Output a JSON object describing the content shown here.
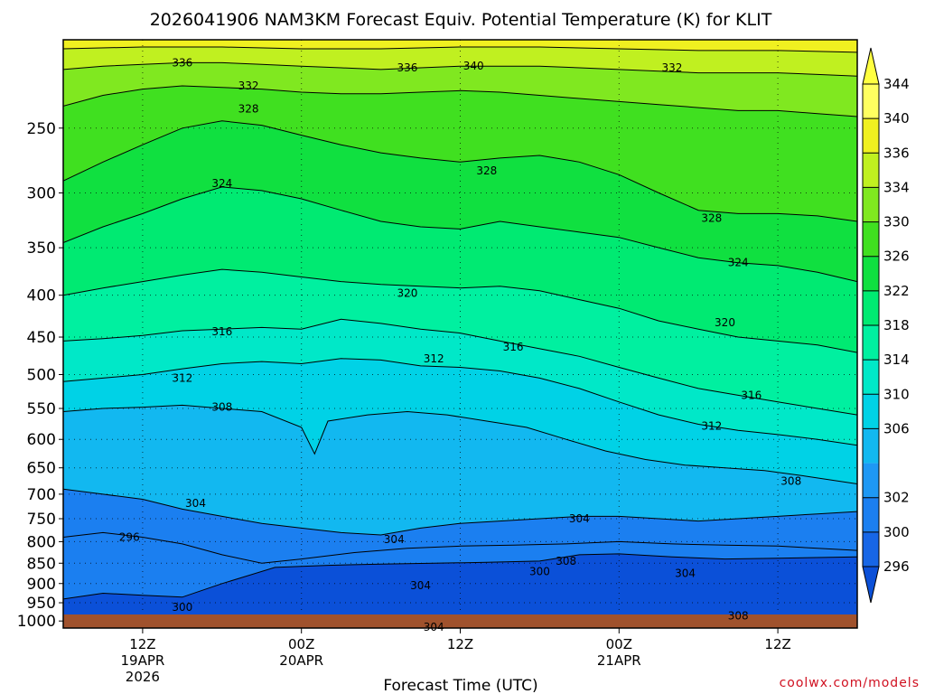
{
  "chart_data": {
    "type": "heatmap",
    "title": "2026041906 NAM3KM Forecast Equiv. Potential Temperature (K) for KLIT",
    "xlabel": "Forecast Time (UTC)",
    "ylabel": "",
    "credit": "coolwx.com/models",
    "y_axis": {
      "scale": "log-pressure",
      "range_hPa": [
        1020,
        195
      ],
      "ticks": [
        250,
        300,
        350,
        400,
        450,
        500,
        550,
        600,
        650,
        700,
        750,
        800,
        850,
        900,
        950,
        1000
      ]
    },
    "x_axis": {
      "range_hours": [
        -6,
        54
      ],
      "ticks": [
        {
          "hour": 0,
          "lines": [
            "12Z",
            "19APR",
            "2026"
          ]
        },
        {
          "hour": 12,
          "lines": [
            "00Z",
            "20APR"
          ]
        },
        {
          "hour": 24,
          "lines": [
            "12Z"
          ]
        },
        {
          "hour": 36,
          "lines": [
            "00Z",
            "21APR"
          ]
        },
        {
          "hour": 48,
          "lines": [
            "12Z"
          ]
        }
      ]
    },
    "colorbar": {
      "units": "K",
      "levels": [
        296,
        300,
        302,
        304,
        306,
        310,
        314,
        318,
        322,
        326,
        330,
        334,
        336,
        340,
        344
      ],
      "labels": [
        "296",
        "300",
        "302",
        "306",
        "310",
        "314",
        "318",
        "322",
        "326",
        "330",
        "334",
        "336",
        "340",
        "344"
      ]
    },
    "contour_interval_K": 4,
    "contours": [
      {
        "value": 296,
        "points": [
          [
            -6,
            790
          ],
          [
            -3,
            780
          ],
          [
            0,
            790
          ],
          [
            3,
            805
          ],
          [
            6,
            830
          ],
          [
            9,
            850
          ],
          [
            12,
            840
          ],
          [
            16,
            825
          ],
          [
            20,
            815
          ],
          [
            24,
            810
          ],
          [
            28,
            808
          ],
          [
            32,
            805
          ],
          [
            36,
            800
          ],
          [
            40,
            805
          ],
          [
            44,
            808
          ],
          [
            48,
            810
          ],
          [
            51,
            815
          ],
          [
            54,
            820
          ]
        ]
      },
      {
        "value": 300,
        "points": [
          [
            -6,
            940
          ],
          [
            -3,
            925
          ],
          [
            0,
            930
          ],
          [
            3,
            935
          ],
          [
            6,
            900
          ],
          [
            10,
            860
          ],
          [
            14,
            855
          ],
          [
            18,
            852
          ],
          [
            22,
            850
          ],
          [
            26,
            848
          ],
          [
            30,
            845
          ],
          [
            33,
            830
          ],
          [
            36,
            828
          ],
          [
            40,
            835
          ],
          [
            44,
            840
          ],
          [
            48,
            838
          ],
          [
            54,
            835
          ]
        ]
      },
      {
        "value": 304,
        "points": [
          [
            -6,
            690
          ],
          [
            -3,
            700
          ],
          [
            0,
            710
          ],
          [
            3,
            730
          ],
          [
            6,
            745
          ],
          [
            9,
            760
          ],
          [
            12,
            770
          ],
          [
            15,
            780
          ],
          [
            18,
            785
          ],
          [
            21,
            770
          ],
          [
            24,
            760
          ],
          [
            27,
            755
          ],
          [
            30,
            750
          ],
          [
            33,
            745
          ],
          [
            36,
            745
          ],
          [
            39,
            750
          ],
          [
            42,
            755
          ],
          [
            45,
            750
          ],
          [
            48,
            745
          ],
          [
            51,
            740
          ],
          [
            54,
            735
          ]
        ]
      },
      {
        "value": 308,
        "points": [
          [
            -6,
            555
          ],
          [
            -3,
            550
          ],
          [
            0,
            548
          ],
          [
            3,
            545
          ],
          [
            6,
            550
          ],
          [
            9,
            555
          ],
          [
            12,
            580
          ],
          [
            13,
            625
          ],
          [
            14,
            570
          ],
          [
            17,
            560
          ],
          [
            20,
            555
          ],
          [
            23,
            560
          ],
          [
            26,
            570
          ],
          [
            29,
            580
          ],
          [
            32,
            600
          ],
          [
            35,
            620
          ],
          [
            38,
            635
          ],
          [
            41,
            645
          ],
          [
            44,
            650
          ],
          [
            47,
            655
          ],
          [
            50,
            665
          ],
          [
            54,
            680
          ]
        ]
      },
      {
        "value": 312,
        "points": [
          [
            -6,
            510
          ],
          [
            -3,
            505
          ],
          [
            0,
            500
          ],
          [
            3,
            492
          ],
          [
            6,
            485
          ],
          [
            9,
            482
          ],
          [
            12,
            485
          ],
          [
            15,
            478
          ],
          [
            18,
            480
          ],
          [
            21,
            488
          ],
          [
            24,
            490
          ],
          [
            27,
            495
          ],
          [
            30,
            505
          ],
          [
            33,
            520
          ],
          [
            36,
            540
          ],
          [
            39,
            560
          ],
          [
            42,
            575
          ],
          [
            45,
            585
          ],
          [
            48,
            592
          ],
          [
            51,
            600
          ],
          [
            54,
            610
          ]
        ]
      },
      {
        "value": 316,
        "points": [
          [
            -6,
            455
          ],
          [
            -3,
            452
          ],
          [
            0,
            448
          ],
          [
            3,
            442
          ],
          [
            6,
            440
          ],
          [
            9,
            438
          ],
          [
            12,
            440
          ],
          [
            15,
            428
          ],
          [
            18,
            433
          ],
          [
            21,
            440
          ],
          [
            24,
            445
          ],
          [
            27,
            455
          ],
          [
            30,
            465
          ],
          [
            33,
            475
          ],
          [
            36,
            490
          ],
          [
            39,
            505
          ],
          [
            42,
            520
          ],
          [
            45,
            530
          ],
          [
            48,
            540
          ],
          [
            51,
            550
          ],
          [
            54,
            560
          ]
        ]
      },
      {
        "value": 320,
        "points": [
          [
            -6,
            400
          ],
          [
            -3,
            392
          ],
          [
            0,
            385
          ],
          [
            3,
            378
          ],
          [
            6,
            372
          ],
          [
            9,
            375
          ],
          [
            12,
            380
          ],
          [
            15,
            385
          ],
          [
            18,
            388
          ],
          [
            21,
            390
          ],
          [
            24,
            392
          ],
          [
            27,
            390
          ],
          [
            30,
            395
          ],
          [
            33,
            405
          ],
          [
            36,
            415
          ],
          [
            39,
            430
          ],
          [
            42,
            440
          ],
          [
            45,
            450
          ],
          [
            48,
            455
          ],
          [
            51,
            460
          ],
          [
            54,
            470
          ]
        ]
      },
      {
        "value": 324,
        "points": [
          [
            -6,
            345
          ],
          [
            -3,
            330
          ],
          [
            0,
            318
          ],
          [
            3,
            305
          ],
          [
            6,
            295
          ],
          [
            9,
            298
          ],
          [
            12,
            305
          ],
          [
            15,
            315
          ],
          [
            18,
            325
          ],
          [
            21,
            330
          ],
          [
            24,
            332
          ],
          [
            27,
            325
          ],
          [
            30,
            330
          ],
          [
            33,
            335
          ],
          [
            36,
            340
          ],
          [
            39,
            350
          ],
          [
            42,
            360
          ],
          [
            45,
            365
          ],
          [
            48,
            368
          ],
          [
            51,
            375
          ],
          [
            54,
            385
          ]
        ]
      },
      {
        "value": 328,
        "points": [
          [
            -6,
            290
          ],
          [
            -3,
            275
          ],
          [
            0,
            262
          ],
          [
            3,
            250
          ],
          [
            6,
            245
          ],
          [
            9,
            248
          ],
          [
            12,
            255
          ],
          [
            15,
            262
          ],
          [
            18,
            268
          ],
          [
            21,
            272
          ],
          [
            24,
            275
          ],
          [
            27,
            272
          ],
          [
            30,
            270
          ],
          [
            33,
            275
          ],
          [
            36,
            285
          ],
          [
            39,
            300
          ],
          [
            42,
            315
          ],
          [
            45,
            318
          ],
          [
            48,
            318
          ],
          [
            51,
            320
          ],
          [
            54,
            325
          ]
        ]
      },
      {
        "value": 332,
        "points": [
          [
            -6,
            235
          ],
          [
            -3,
            228
          ],
          [
            0,
            224
          ],
          [
            3,
            222
          ],
          [
            6,
            223
          ],
          [
            9,
            224
          ],
          [
            12,
            226
          ],
          [
            15,
            227
          ],
          [
            18,
            227
          ],
          [
            21,
            226
          ],
          [
            24,
            225
          ],
          [
            27,
            226
          ],
          [
            30,
            228
          ],
          [
            33,
            230
          ],
          [
            36,
            232
          ],
          [
            39,
            234
          ],
          [
            42,
            236
          ],
          [
            45,
            238
          ],
          [
            48,
            238
          ],
          [
            51,
            240
          ],
          [
            54,
            242
          ]
        ]
      },
      {
        "value": 336,
        "points": [
          [
            -6,
            212
          ],
          [
            -3,
            210
          ],
          [
            0,
            209
          ],
          [
            3,
            208
          ],
          [
            6,
            208
          ],
          [
            9,
            209
          ],
          [
            12,
            210
          ],
          [
            15,
            211
          ],
          [
            18,
            212
          ],
          [
            21,
            211
          ],
          [
            24,
            210
          ],
          [
            27,
            210
          ],
          [
            30,
            210
          ],
          [
            33,
            211
          ],
          [
            36,
            212
          ],
          [
            39,
            213
          ],
          [
            42,
            214
          ],
          [
            45,
            214
          ],
          [
            48,
            214
          ],
          [
            51,
            215
          ],
          [
            54,
            216
          ]
        ]
      },
      {
        "value": 340,
        "points": [
          [
            -6,
            200
          ],
          [
            0,
            199
          ],
          [
            6,
            199
          ],
          [
            12,
            200
          ],
          [
            18,
            200
          ],
          [
            24,
            199
          ],
          [
            30,
            199
          ],
          [
            36,
            200
          ],
          [
            42,
            201
          ],
          [
            48,
            201
          ],
          [
            54,
            202
          ]
        ]
      }
    ],
    "contour_labels": [
      {
        "text": "336",
        "hour": 3,
        "p": 208
      },
      {
        "text": "336",
        "hour": 20,
        "p": 211
      },
      {
        "text": "340",
        "hour": 25,
        "p": 210
      },
      {
        "text": "332",
        "hour": 40,
        "p": 211
      },
      {
        "text": "332",
        "hour": 8,
        "p": 222
      },
      {
        "text": "328",
        "hour": 8,
        "p": 237
      },
      {
        "text": "328",
        "hour": 26,
        "p": 282
      },
      {
        "text": "324",
        "hour": 6,
        "p": 292
      },
      {
        "text": "328",
        "hour": 43,
        "p": 322
      },
      {
        "text": "324",
        "hour": 45,
        "p": 365
      },
      {
        "text": "320",
        "hour": 20,
        "p": 398
      },
      {
        "text": "320",
        "hour": 44,
        "p": 432
      },
      {
        "text": "316",
        "hour": 6,
        "p": 443
      },
      {
        "text": "316",
        "hour": 28,
        "p": 463
      },
      {
        "text": "312",
        "hour": 22,
        "p": 478
      },
      {
        "text": "312",
        "hour": 3,
        "p": 505
      },
      {
        "text": "316",
        "hour": 46,
        "p": 530
      },
      {
        "text": "308",
        "hour": 6,
        "p": 548
      },
      {
        "text": "312",
        "hour": 43,
        "p": 578
      },
      {
        "text": "308",
        "hour": 49,
        "p": 675
      },
      {
        "text": "304",
        "hour": 4,
        "p": 718
      },
      {
        "text": "304",
        "hour": 33,
        "p": 750
      },
      {
        "text": "304",
        "hour": 19,
        "p": 795
      },
      {
        "text": "308",
        "hour": 32,
        "p": 845
      },
      {
        "text": "300",
        "hour": 30,
        "p": 870
      },
      {
        "text": "304",
        "hour": 41,
        "p": 875
      },
      {
        "text": "304",
        "hour": 21,
        "p": 905
      },
      {
        "text": "296",
        "hour": -1,
        "p": 790
      },
      {
        "text": "300",
        "hour": 3,
        "p": 962
      },
      {
        "text": "308",
        "hour": 45,
        "p": 985
      },
      {
        "text": "304",
        "hour": 22,
        "p": 1018
      }
    ]
  }
}
